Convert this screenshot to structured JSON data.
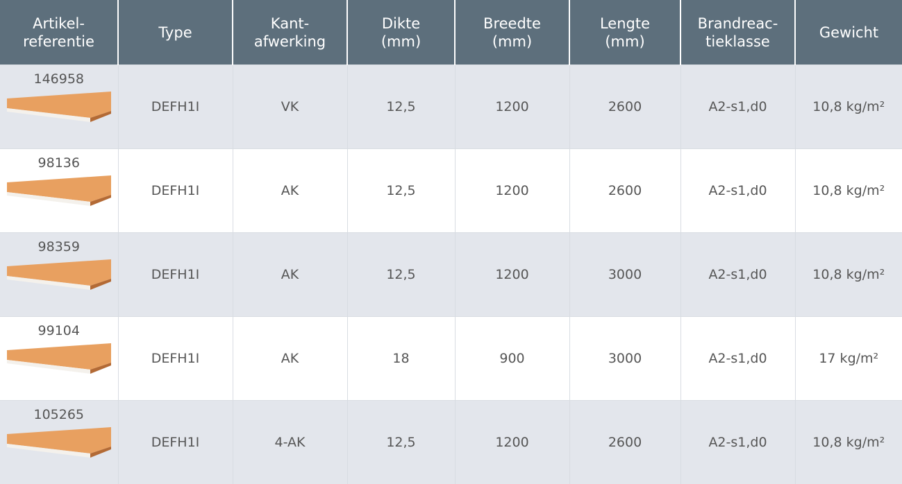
{
  "table": {
    "header": [
      [
        "Artikel-",
        "referentie"
      ],
      [
        "Type"
      ],
      [
        "Kant-",
        "afwerking"
      ],
      [
        "Dikte",
        "(mm)"
      ],
      [
        "Breedte",
        "(mm)"
      ],
      [
        "Lengte",
        "(mm)"
      ],
      [
        "Brandreac-",
        "tieklasse"
      ],
      [
        "Gewicht"
      ]
    ],
    "rows": [
      [
        "146958",
        "DEFH1I",
        "VK",
        "12,5",
        "1200",
        "2600",
        "A2-s1,d0",
        "10,8 kg/m²"
      ],
      [
        "98136",
        "DEFH1I",
        "AK",
        "12,5",
        "1200",
        "2600",
        "A2-s1,d0",
        "10,8 kg/m²"
      ],
      [
        "98359",
        "DEFH1I",
        "AK",
        "12,5",
        "1200",
        "3000",
        "A2-s1,d0",
        "10,8 kg/m²"
      ],
      [
        "99104",
        "DEFH1I",
        "AK",
        "18",
        "900",
        "3000",
        "A2-s1,d0",
        "17 kg/m²"
      ],
      [
        "105265",
        "DEFH1I",
        "4-AK",
        "12,5",
        "1200",
        "2600",
        "A2-s1,d0",
        "10,8 kg/m²"
      ]
    ]
  }
}
